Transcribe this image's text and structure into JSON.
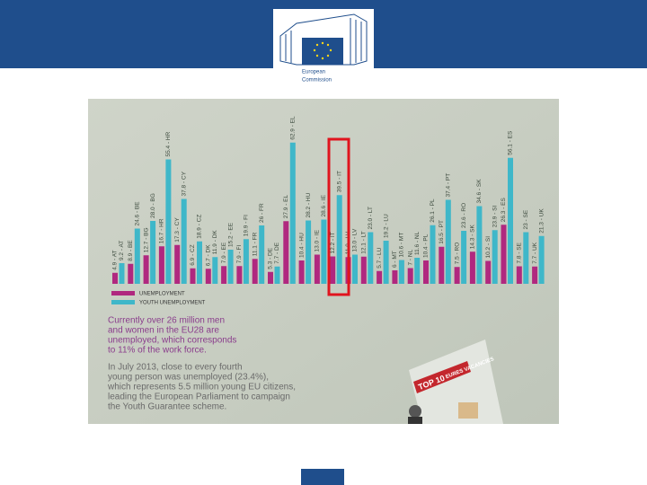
{
  "header": {
    "logo_lines": [
      "European",
      "Commission"
    ]
  },
  "chart_data": {
    "type": "bar",
    "series": [
      {
        "name": "UNEMPLOYMENT",
        "color": "#b0287f",
        "values": [
          4.9,
          8.9,
          12.7,
          16.7,
          17.3,
          6.9,
          6.7,
          7.9,
          7.9,
          11.1,
          5.3,
          27.9,
          10.4,
          13.0,
          12.2,
          11.9,
          12.1,
          5.7,
          6.0,
          7.0,
          10.4,
          16.5,
          7.5,
          14.3,
          10.2,
          26.3,
          7.8,
          7.7
        ],
        "value_labels": [
          "4.9 - AT",
          "8.9 - BE",
          "12.7 - BG",
          "16.7 - HR",
          "17.3 - CY",
          "6.9 - CZ",
          "6.7 - DK",
          "7.9 - EE",
          "7.9 - FI",
          "11.1 - FR",
          "5.3 - DE",
          "27.9 - EL",
          "10.4 - HU",
          "13.0 - IE",
          "12.2 - IT",
          "11.9 - LV",
          "12.1 - LT",
          "5.7 - LU",
          "6 - MT",
          "7 - NL",
          "10.4 - PL",
          "16.5 - PT",
          "7.5 - RO",
          "14.3 - SK",
          "10.2 - SI",
          "26.3 - ES",
          "7.8 - SE",
          "7.7 - UK"
        ]
      },
      {
        "name": "YOUTH UNEMPLOYMENT",
        "color": "#3fb7c9",
        "values": [
          9.2,
          24.6,
          28.0,
          55.4,
          37.8,
          18.9,
          11.9,
          15.2,
          19.9,
          26.0,
          7.7,
          62.9,
          28.2,
          28.6,
          39.5,
          13.0,
          23.0,
          19.2,
          10.6,
          11.6,
          26.1,
          37.4,
          23.6,
          34.6,
          23.9,
          56.1,
          23.0,
          21.3
        ],
        "value_labels": [
          "9.2 - AT",
          "24.6 - BE",
          "28.0 - BG",
          "55.4 - HR",
          "37.8 - CY",
          "18.9 - CZ",
          "11.9 - DK",
          "15.2 - EE",
          "19.9 - FI",
          "26 - FR",
          "7.7 - DE",
          "62.9 - EL",
          "28.2 - HU",
          "28.6 - IE",
          "39.5 - IT",
          "13.0 - LV",
          "23.0 - LT",
          "19.2 - LU",
          "10.6 - MT",
          "11.6 - NL",
          "26.1 - PL",
          "37.4 - PT",
          "23.6 - RO",
          "34.6 - SK",
          "23.9 - SI",
          "56.1 - ES",
          "23 - SE",
          "21.3 - UK"
        ]
      }
    ]
  },
  "paragraphs": [
    [
      "Currently over 26 million men",
      "and women in the EU28 are",
      "unemployed, which corresponds",
      "to 11% of the work force."
    ],
    [
      "In July 2013, close to every fourth",
      "young person was unemployed (23.4%),",
      "which represents 5.5 million young EU citizens,",
      "leading the European Parliament to campaign",
      "the Youth Guarantee scheme."
    ]
  ],
  "poster": {
    "title": "TOP 10",
    "subtitle": "EURES VACANCIES"
  }
}
